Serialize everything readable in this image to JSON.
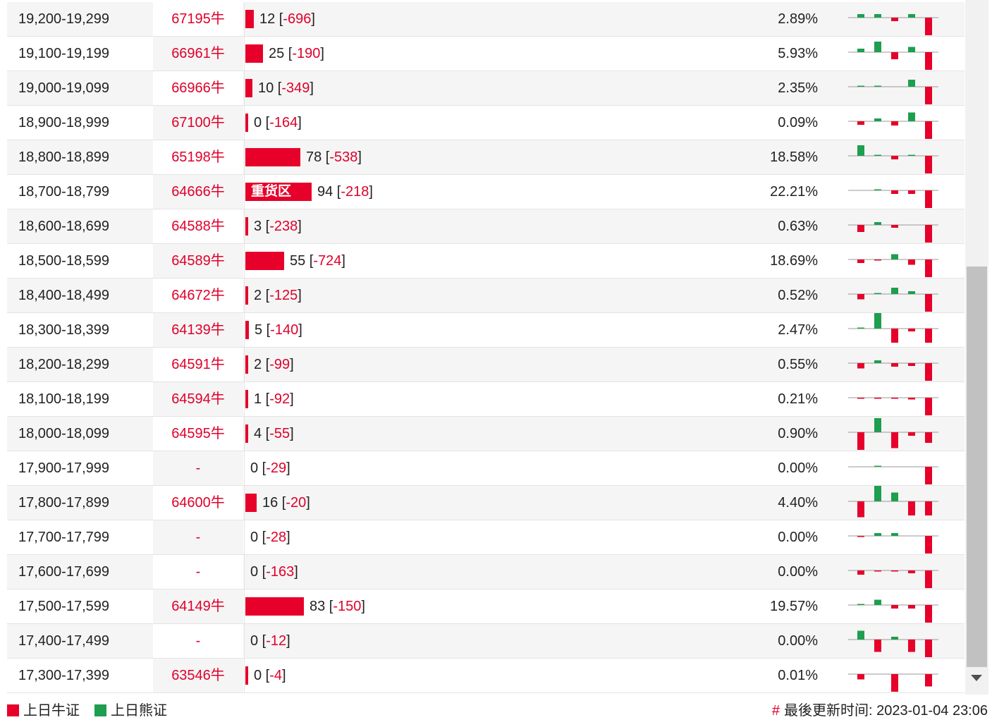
{
  "colors": {
    "bull": "#e6002a",
    "bear": "#1e9e4f"
  },
  "rows": [
    {
      "range": "19,200-19,299",
      "code": "67195牛",
      "bar_value": 12,
      "change": "-696",
      "pct": "2.89%",
      "spark": [
        1,
        1,
        -1,
        1,
        -5
      ]
    },
    {
      "range": "19,100-19,199",
      "code": "66961牛",
      "bar_value": 25,
      "change": "-190",
      "pct": "5.93%",
      "spark": [
        1,
        3,
        -2,
        1.5,
        -5
      ]
    },
    {
      "range": "19,000-19,099",
      "code": "66966牛",
      "bar_value": 10,
      "change": "-349",
      "pct": "2.35%",
      "spark": [
        0.3,
        0.3,
        0,
        2,
        -5
      ]
    },
    {
      "range": "18,900-18,999",
      "code": "67100牛",
      "bar_value": 0,
      "change": "-164",
      "pct": "0.09%",
      "spark": [
        -1,
        0.8,
        -1.2,
        2.5,
        -5
      ]
    },
    {
      "range": "18,800-18,899",
      "code": "65198牛",
      "bar_value": 78,
      "change": "-538",
      "pct": "18.58%",
      "spark": [
        3,
        0.3,
        -1,
        0.3,
        -5
      ]
    },
    {
      "range": "18,700-18,799",
      "code": "64666牛",
      "bar_value": 94,
      "change": "-218",
      "pct": "22.21%",
      "spark": [
        0,
        0.3,
        -1,
        -1,
        -5
      ],
      "label": "重货区"
    },
    {
      "range": "18,600-18,699",
      "code": "64588牛",
      "bar_value": 3,
      "change": "-238",
      "pct": "0.63%",
      "spark": [
        -2,
        0.8,
        -0.8,
        0,
        -5
      ]
    },
    {
      "range": "18,500-18,599",
      "code": "64589牛",
      "bar_value": 55,
      "change": "-724",
      "pct": "18.69%",
      "spark": [
        -1,
        -0.3,
        1.5,
        -1.5,
        -5
      ]
    },
    {
      "range": "18,400-18,499",
      "code": "64672牛",
      "bar_value": 2,
      "change": "-125",
      "pct": "0.52%",
      "spark": [
        -1.5,
        0.3,
        1.8,
        0.8,
        -5
      ]
    },
    {
      "range": "18,300-18,399",
      "code": "64139牛",
      "bar_value": 5,
      "change": "-140",
      "pct": "2.47%",
      "spark": [
        0.3,
        5,
        -4,
        -0.8,
        -4
      ]
    },
    {
      "range": "18,200-18,299",
      "code": "64591牛",
      "bar_value": 2,
      "change": "-99",
      "pct": "0.55%",
      "spark": [
        -1.5,
        0.8,
        -1,
        -0.8,
        -5
      ]
    },
    {
      "range": "18,100-18,199",
      "code": "64594牛",
      "bar_value": 1,
      "change": "-92",
      "pct": "0.21%",
      "spark": [
        -0.3,
        -0.3,
        -0.3,
        -0.5,
        -5
      ]
    },
    {
      "range": "18,000-18,099",
      "code": "64595牛",
      "bar_value": 4,
      "change": "-55",
      "pct": "0.90%",
      "spark": [
        -5,
        4,
        -4.5,
        -1,
        -3
      ]
    },
    {
      "range": "17,900-17,999",
      "code": "-",
      "bar_value": 0,
      "change": "-29",
      "pct": "0.00%",
      "spark": [
        0,
        0.3,
        0,
        0,
        -5
      ]
    },
    {
      "range": "17,800-17,899",
      "code": "64600牛",
      "bar_value": 16,
      "change": "-20",
      "pct": "4.40%",
      "spark": [
        -4.5,
        5,
        2.5,
        -4,
        -4
      ]
    },
    {
      "range": "17,700-17,799",
      "code": "-",
      "bar_value": 0,
      "change": "-28",
      "pct": "0.00%",
      "spark": [
        -0.3,
        0.8,
        0.8,
        0,
        -5
      ]
    },
    {
      "range": "17,600-17,699",
      "code": "-",
      "bar_value": 0,
      "change": "-163",
      "pct": "0.00%",
      "spark": [
        -1.2,
        -0.3,
        -0.3,
        -0.8,
        -5
      ]
    },
    {
      "range": "17,500-17,599",
      "code": "64149牛",
      "bar_value": 83,
      "change": "-150",
      "pct": "19.57%",
      "spark": [
        0.3,
        1.5,
        -1,
        -1,
        -5
      ]
    },
    {
      "range": "17,400-17,499",
      "code": "-",
      "bar_value": 0,
      "change": "-12",
      "pct": "0.00%",
      "spark": [
        2.5,
        -3.5,
        0.8,
        -3.5,
        -5
      ]
    },
    {
      "range": "17,300-17,399",
      "code": "63546牛",
      "bar_value": 0,
      "change": "-4",
      "pct": "0.01%",
      "spark": [
        -1.5,
        0,
        -5,
        0,
        -3.5
      ]
    }
  ],
  "legend": {
    "bull_label": "上日牛证",
    "bear_label": "上日熊证"
  },
  "footer": {
    "hash": "#",
    "update_label": "最後更新时间:",
    "update_time": "2023-01-04 23:06"
  }
}
